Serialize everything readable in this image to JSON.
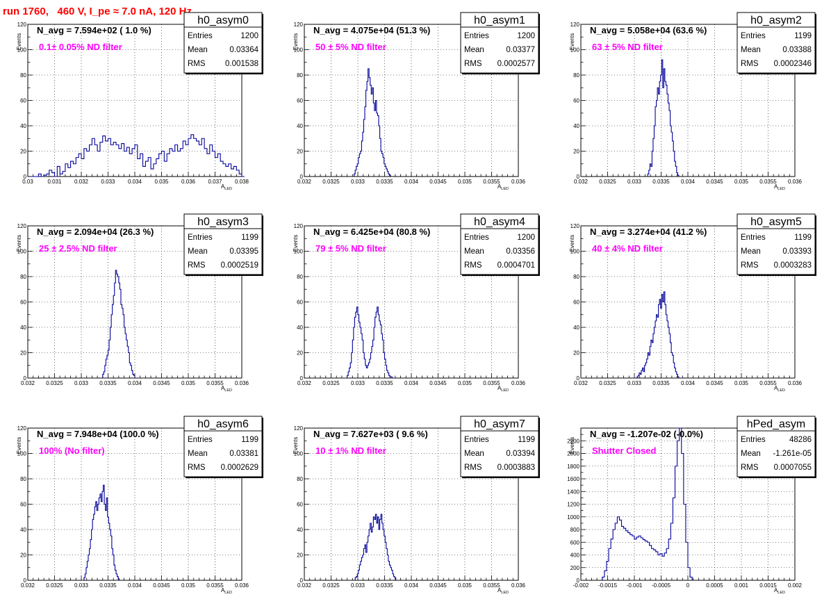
{
  "run_title": "run 1760,   460 V, I_pe ≈ 7.0 nA, 120 Hz",
  "stats_labels": {
    "entries": "Entries",
    "mean": "Mean",
    "rms": "RMS"
  },
  "x_axis_title": "A",
  "x_axis_subscript": "LED",
  "y_axis_title": "Events",
  "colors": {
    "histogram": "#000099",
    "annotation": "#ff00ff",
    "run_title": "#ff0000",
    "grid": "#000000"
  },
  "chart_data": [
    {
      "type": "histogram",
      "title": "h0_asym0",
      "n_avg": "N_avg = 7.594e+02 ( 1.0 %)",
      "annotation": "0.1± 0.05% ND filter",
      "entries": "1200",
      "mean": "0.03364",
      "rms": "0.001538",
      "xlim": [
        0.03,
        0.038
      ],
      "ylim": [
        0,
        120
      ],
      "x_ticks": [
        "0.03",
        "0.031",
        "0.032",
        "0.033",
        "0.034",
        "0.035",
        "0.036",
        "0.037",
        "0.038"
      ],
      "y_ticks": [
        "0",
        "20",
        "40",
        "60",
        "80",
        "100",
        "120"
      ],
      "bin_lo": 0.0301,
      "bin_width": 0.0001,
      "counts": [
        0,
        0,
        0,
        2,
        0,
        1,
        2,
        5,
        3,
        0,
        8,
        2,
        4,
        10,
        7,
        12,
        10,
        15,
        18,
        14,
        22,
        20,
        25,
        30,
        25,
        20,
        27,
        32,
        28,
        30,
        25,
        27,
        25,
        22,
        26,
        20,
        23,
        18,
        22,
        25,
        14,
        18,
        8,
        12,
        15,
        6,
        10,
        14,
        18,
        20,
        12,
        18,
        22,
        20,
        25,
        20,
        22,
        28,
        25,
        30,
        33,
        30,
        28,
        25,
        30,
        22,
        18,
        25,
        20,
        15,
        18,
        12,
        10,
        8,
        10,
        6,
        8,
        5,
        2,
        0
      ]
    },
    {
      "type": "histogram",
      "title": "h0_asym1",
      "n_avg": "N_avg = 4.075e+04 (51.3 %)",
      "annotation": "50 ± 5% ND filter",
      "entries": "1200",
      "mean": "0.03377",
      "rms": "0.0002577",
      "xlim": [
        0.032,
        0.036
      ],
      "ylim": [
        0,
        120
      ],
      "x_ticks": [
        "0.032",
        "0.0325",
        "0.033",
        "0.0335",
        "0.034",
        "0.0345",
        "0.035",
        "0.0355",
        "0.036"
      ],
      "y_ticks": [
        "0",
        "20",
        "40",
        "60",
        "80",
        "100",
        "120"
      ],
      "bin_lo": 0.03293,
      "bin_width": 2e-05,
      "counts": [
        2,
        5,
        8,
        10,
        15,
        18,
        20,
        28,
        35,
        45,
        55,
        68,
        75,
        85,
        78,
        72,
        65,
        70,
        58,
        52,
        60,
        50,
        48,
        40,
        30,
        20,
        18,
        15,
        10,
        8,
        6,
        4,
        2,
        1
      ]
    },
    {
      "type": "histogram",
      "title": "h0_asym2",
      "n_avg": "N_avg = 5.058e+04 (63.6 %)",
      "annotation": "63 ± 5% ND filter",
      "entries": "1199",
      "mean": "0.03388",
      "rms": "0.0002346",
      "xlim": [
        0.032,
        0.036
      ],
      "ylim": [
        0,
        120
      ],
      "x_ticks": [
        "0.032",
        "0.0325",
        "0.033",
        "0.0335",
        "0.034",
        "0.0345",
        "0.035",
        "0.0355",
        "0.036"
      ],
      "y_ticks": [
        "0",
        "20",
        "40",
        "60",
        "80",
        "100",
        "120"
      ],
      "bin_lo": 0.03325,
      "bin_width": 2e-05,
      "counts": [
        2,
        5,
        10,
        8,
        20,
        30,
        40,
        55,
        60,
        70,
        65,
        75,
        80,
        92,
        70,
        85,
        75,
        72,
        65,
        58,
        52,
        40,
        35,
        28,
        20,
        12,
        8,
        3,
        1
      ]
    },
    {
      "type": "histogram",
      "title": "h0_asym3",
      "n_avg": "N_avg = 2.094e+04 (26.3 %)",
      "annotation": "25 ± 2.5% ND filter",
      "entries": "1199",
      "mean": "0.03395",
      "rms": "0.0002519",
      "xlim": [
        0.032,
        0.036
      ],
      "ylim": [
        0,
        120
      ],
      "x_ticks": [
        "0.032",
        "0.0325",
        "0.033",
        "0.0335",
        "0.034",
        "0.0345",
        "0.035",
        "0.0355",
        "0.036"
      ],
      "y_ticks": [
        "0",
        "20",
        "40",
        "60",
        "80",
        "100",
        "120"
      ],
      "bin_lo": 0.0334,
      "bin_width": 2e-05,
      "counts": [
        3,
        5,
        10,
        15,
        18,
        22,
        30,
        40,
        50,
        58,
        65,
        75,
        85,
        82,
        80,
        75,
        70,
        58,
        55,
        50,
        40,
        35,
        30,
        25,
        20,
        12,
        10,
        6,
        3,
        2
      ]
    },
    {
      "type": "histogram",
      "title": "h0_asym4",
      "n_avg": "N_avg = 6.425e+04 (80.8 %)",
      "annotation": "79 ± 5% ND filter",
      "entries": "1200",
      "mean": "0.03356",
      "rms": "0.0004701",
      "xlim": [
        0.032,
        0.036
      ],
      "ylim": [
        0,
        120
      ],
      "x_ticks": [
        "0.032",
        "0.0325",
        "0.033",
        "0.0335",
        "0.034",
        "0.0345",
        "0.035",
        "0.0355",
        "0.036"
      ],
      "y_ticks": [
        "0",
        "20",
        "40",
        "60",
        "80",
        "100",
        "120"
      ],
      "bin_lo": 0.0328,
      "bin_width": 2e-05,
      "counts": [
        2,
        5,
        8,
        12,
        20,
        30,
        40,
        48,
        52,
        56,
        50,
        44,
        40,
        35,
        30,
        20,
        15,
        10,
        8,
        10,
        12,
        15,
        20,
        25,
        30,
        40,
        48,
        52,
        56,
        50,
        45,
        42,
        35,
        30,
        20,
        15,
        10,
        6,
        4,
        2,
        1,
        1
      ]
    },
    {
      "type": "histogram",
      "title": "h0_asym5",
      "n_avg": "N_avg = 3.274e+04 (41.2 %)",
      "annotation": "40 ± 4% ND filter",
      "entries": "1199",
      "mean": "0.03393",
      "rms": "0.0003283",
      "xlim": [
        0.032,
        0.036
      ],
      "ylim": [
        0,
        120
      ],
      "x_ticks": [
        "0.032",
        "0.0325",
        "0.033",
        "0.0335",
        "0.034",
        "0.0345",
        "0.035",
        "0.0355",
        "0.036"
      ],
      "y_ticks": [
        "0",
        "20",
        "40",
        "60",
        "80",
        "100",
        "120"
      ],
      "bin_lo": 0.03305,
      "bin_width": 2e-05,
      "counts": [
        1,
        2,
        4,
        3,
        6,
        8,
        5,
        10,
        12,
        15,
        20,
        18,
        25,
        30,
        28,
        35,
        40,
        45,
        50,
        48,
        58,
        62,
        55,
        66,
        60,
        68,
        58,
        50,
        45,
        40,
        35,
        28,
        20,
        18,
        12,
        8,
        5,
        3,
        1
      ]
    },
    {
      "type": "histogram",
      "title": "h0_asym6",
      "n_avg": "N_avg = 7.948e+04 (100.0 %)",
      "annotation": "100% (No filter)",
      "entries": "1199",
      "mean": "0.03381",
      "rms": "0.0002629",
      "xlim": [
        0.032,
        0.036
      ],
      "ylim": [
        0,
        120
      ],
      "x_ticks": [
        "0.032",
        "0.0325",
        "0.033",
        "0.0335",
        "0.034",
        "0.0345",
        "0.035",
        "0.0355",
        "0.036"
      ],
      "y_ticks": [
        "0",
        "20",
        "40",
        "60",
        "80",
        "100",
        "120"
      ],
      "bin_lo": 0.03305,
      "bin_width": 2e-05,
      "counts": [
        2,
        5,
        10,
        15,
        20,
        25,
        32,
        40,
        48,
        52,
        58,
        62,
        55,
        60,
        65,
        68,
        62,
        70,
        75,
        60,
        55,
        65,
        50,
        45,
        40,
        35,
        25,
        20,
        12,
        8,
        5,
        3,
        1
      ]
    },
    {
      "type": "histogram",
      "title": "h0_asym7",
      "n_avg": "N_avg = 7.627e+03 ( 9.6 %)",
      "annotation": "10 ± 1% ND filter",
      "entries": "1199",
      "mean": "0.03394",
      "rms": "0.0003883",
      "xlim": [
        0.032,
        0.036
      ],
      "ylim": [
        0,
        120
      ],
      "x_ticks": [
        "0.032",
        "0.0325",
        "0.033",
        "0.0335",
        "0.034",
        "0.0345",
        "0.035",
        "0.0355",
        "0.036"
      ],
      "y_ticks": [
        "0",
        "20",
        "40",
        "60",
        "80",
        "100",
        "120"
      ],
      "bin_lo": 0.03295,
      "bin_width": 2e-05,
      "counts": [
        2,
        3,
        5,
        8,
        12,
        15,
        18,
        20,
        25,
        28,
        22,
        30,
        35,
        40,
        45,
        38,
        42,
        50,
        48,
        52,
        45,
        50,
        40,
        48,
        52,
        45,
        40,
        35,
        30,
        25,
        20,
        15,
        12,
        10,
        8,
        5,
        3,
        2
      ]
    },
    {
      "type": "histogram",
      "title": "hPed_asym",
      "n_avg": "N_avg = -1.207e-02 (-0.0%)",
      "annotation": "Shutter Closed",
      "entries": "48286",
      "mean": "-1.261e-05",
      "rms": "0.0007055",
      "xlim": [
        -0.002,
        0.002
      ],
      "ylim": [
        0,
        2400
      ],
      "x_ticks": [
        "-0.002",
        "-0.0015",
        "-0.001",
        "-0.0005",
        "0",
        "0.0005",
        "0.001",
        "0.0015",
        "0.002"
      ],
      "y_ticks": [
        "0",
        "200",
        "400",
        "600",
        "800",
        "1000",
        "1200",
        "1400",
        "1600",
        "1800",
        "2000",
        "2200"
      ],
      "bin_lo": -0.0016,
      "bin_width": 4e-05,
      "counts": [
        50,
        150,
        300,
        500,
        650,
        800,
        900,
        1000,
        950,
        850,
        820,
        780,
        750,
        720,
        700,
        650,
        680,
        700,
        670,
        640,
        620,
        600,
        550,
        500,
        480,
        450,
        400,
        420,
        380,
        430,
        500,
        650,
        900,
        1300,
        1800,
        2200,
        2400,
        2000,
        1200,
        600,
        200,
        50
      ]
    }
  ]
}
